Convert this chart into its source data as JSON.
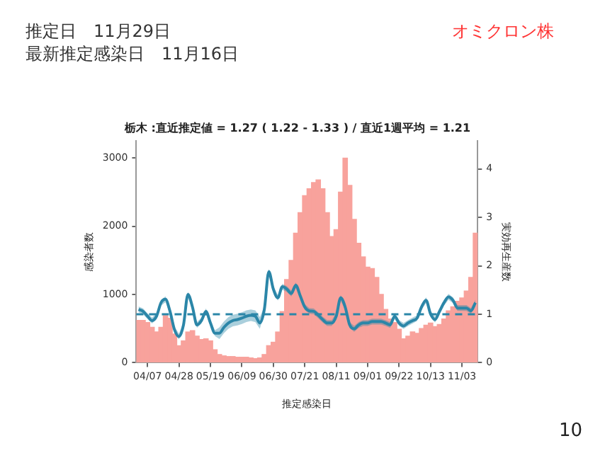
{
  "chart_data": {
    "type": "bar",
    "title": "栃木 :直近推定値 = 1.27 ( 1.22 - 1.33 ) / 直近1週平均 = 1.21",
    "xlabel": "推定感染日",
    "ylabel": "感染者数",
    "y2label": "実効再生産数",
    "annotations": [
      "推定日　11月29日",
      "最新推定感染日　11月16日",
      "オミクロン株",
      "10"
    ],
    "categories": [
      null,
      null,
      "04/07",
      null,
      null,
      null,
      null,
      null,
      null,
      "04/28",
      null,
      null,
      null,
      null,
      null,
      null,
      "05/19",
      null,
      null,
      null,
      null,
      null,
      null,
      "06/09",
      null,
      null,
      null,
      null,
      null,
      null,
      "06/30",
      null,
      null,
      null,
      null,
      null,
      null,
      "07/21",
      null,
      null,
      null,
      null,
      null,
      null,
      "08/11",
      null,
      null,
      null,
      null,
      null,
      null,
      "09/01",
      null,
      null,
      null,
      null,
      null,
      null,
      "09/22",
      null,
      null,
      null,
      null,
      null,
      null,
      "10/13",
      null,
      null,
      null,
      null,
      null,
      null,
      "11/03",
      null,
      null,
      null
    ],
    "series": [
      {
        "color": "#f8a29c",
        "values": [
          620,
          620,
          590,
          520,
          450,
          520,
          690,
          650,
          420,
          250,
          320,
          450,
          470,
          390,
          340,
          350,
          320,
          190,
          120,
          100,
          90,
          90,
          80,
          80,
          80,
          70,
          60,
          70,
          120,
          250,
          300,
          450,
          750,
          1220,
          1500,
          1900,
          2200,
          2450,
          2550,
          2640,
          2680,
          2550,
          2200,
          1850,
          1950,
          2500,
          3000,
          2600,
          2100,
          1750,
          1550,
          1400,
          1380,
          1250,
          1000,
          780,
          640,
          590,
          490,
          350,
          390,
          450,
          430,
          500,
          550,
          580,
          530,
          560,
          640,
          760,
          820,
          900,
          950,
          1050,
          1250,
          1900
        ]
      },
      {
        "type": "line",
        "axis": "y2",
        "color": "#2b86a8",
        "values": [
          1.1,
          1.06,
          0.96,
          0.87,
          0.96,
          1.24,
          1.31,
          1.06,
          0.68,
          0.54,
          0.78,
          1.41,
          1.15,
          0.78,
          0.87,
          1.06,
          0.82,
          0.61,
          0.61,
          0.73,
          0.82,
          0.87,
          0.89,
          0.92,
          0.96,
          0.98,
          0.96,
          0.82,
          1.1,
          1.88,
          1.52,
          1.34,
          1.57,
          1.52,
          1.43,
          1.6,
          1.38,
          1.15,
          1.07,
          1.06,
          0.98,
          0.89,
          0.82,
          0.82,
          0.96,
          1.34,
          1.15,
          0.78,
          0.7,
          0.78,
          0.82,
          0.82,
          0.85,
          0.85,
          0.85,
          0.82,
          0.78,
          0.96,
          0.82,
          0.76,
          0.82,
          0.87,
          0.92,
          1.15,
          1.29,
          1.01,
          0.89,
          1.06,
          1.24,
          1.36,
          1.29,
          1.13,
          1.13,
          1.13,
          1.07,
          1.24
        ],
        "lower": [
          1.04,
          1.0,
          0.9,
          0.81,
          0.9,
          1.18,
          1.25,
          1.0,
          0.62,
          0.48,
          0.72,
          1.35,
          1.09,
          0.72,
          0.81,
          1.0,
          0.76,
          0.55,
          0.49,
          0.61,
          0.7,
          0.75,
          0.77,
          0.8,
          0.84,
          0.86,
          0.84,
          0.7,
          1.04,
          1.82,
          1.46,
          1.28,
          1.51,
          1.46,
          1.37,
          1.54,
          1.32,
          1.09,
          1.01,
          1.0,
          0.92,
          0.83,
          0.76,
          0.76,
          0.9,
          1.28,
          1.09,
          0.72,
          0.64,
          0.72,
          0.76,
          0.76,
          0.79,
          0.79,
          0.79,
          0.76,
          0.72,
          0.9,
          0.76,
          0.7,
          0.76,
          0.81,
          0.86,
          1.09,
          1.23,
          0.95,
          0.83,
          1.0,
          1.18,
          1.3,
          1.23,
          1.07,
          1.07,
          1.07,
          1.01,
          1.18
        ],
        "upper": [
          1.16,
          1.12,
          1.02,
          0.93,
          1.02,
          1.3,
          1.37,
          1.12,
          0.74,
          0.6,
          0.84,
          1.47,
          1.21,
          0.84,
          0.93,
          1.12,
          0.88,
          0.67,
          0.73,
          0.85,
          0.94,
          0.99,
          1.01,
          1.04,
          1.08,
          1.1,
          1.08,
          0.94,
          1.16,
          1.94,
          1.58,
          1.4,
          1.63,
          1.58,
          1.49,
          1.66,
          1.44,
          1.21,
          1.13,
          1.12,
          1.04,
          0.95,
          0.88,
          0.88,
          1.02,
          1.4,
          1.21,
          0.84,
          0.76,
          0.84,
          0.88,
          0.88,
          0.91,
          0.91,
          0.91,
          0.88,
          0.84,
          1.02,
          0.88,
          0.82,
          0.88,
          0.93,
          0.98,
          1.21,
          1.35,
          1.07,
          0.95,
          1.12,
          1.3,
          1.42,
          1.35,
          1.19,
          1.19,
          1.19,
          1.13,
          1.3
        ]
      }
    ],
    "ylim": [
      0,
      3250
    ],
    "yticks": [
      0,
      1000,
      2000,
      3000
    ],
    "y2lim": [
      0,
      4.58
    ],
    "y2ticks": [
      0,
      1,
      2,
      3,
      4
    ],
    "ref_lines": [
      {
        "axis": "y2",
        "value": 1,
        "color": "#2b86a8",
        "line_style": "dashed"
      }
    ],
    "grid": false,
    "legend": false
  }
}
